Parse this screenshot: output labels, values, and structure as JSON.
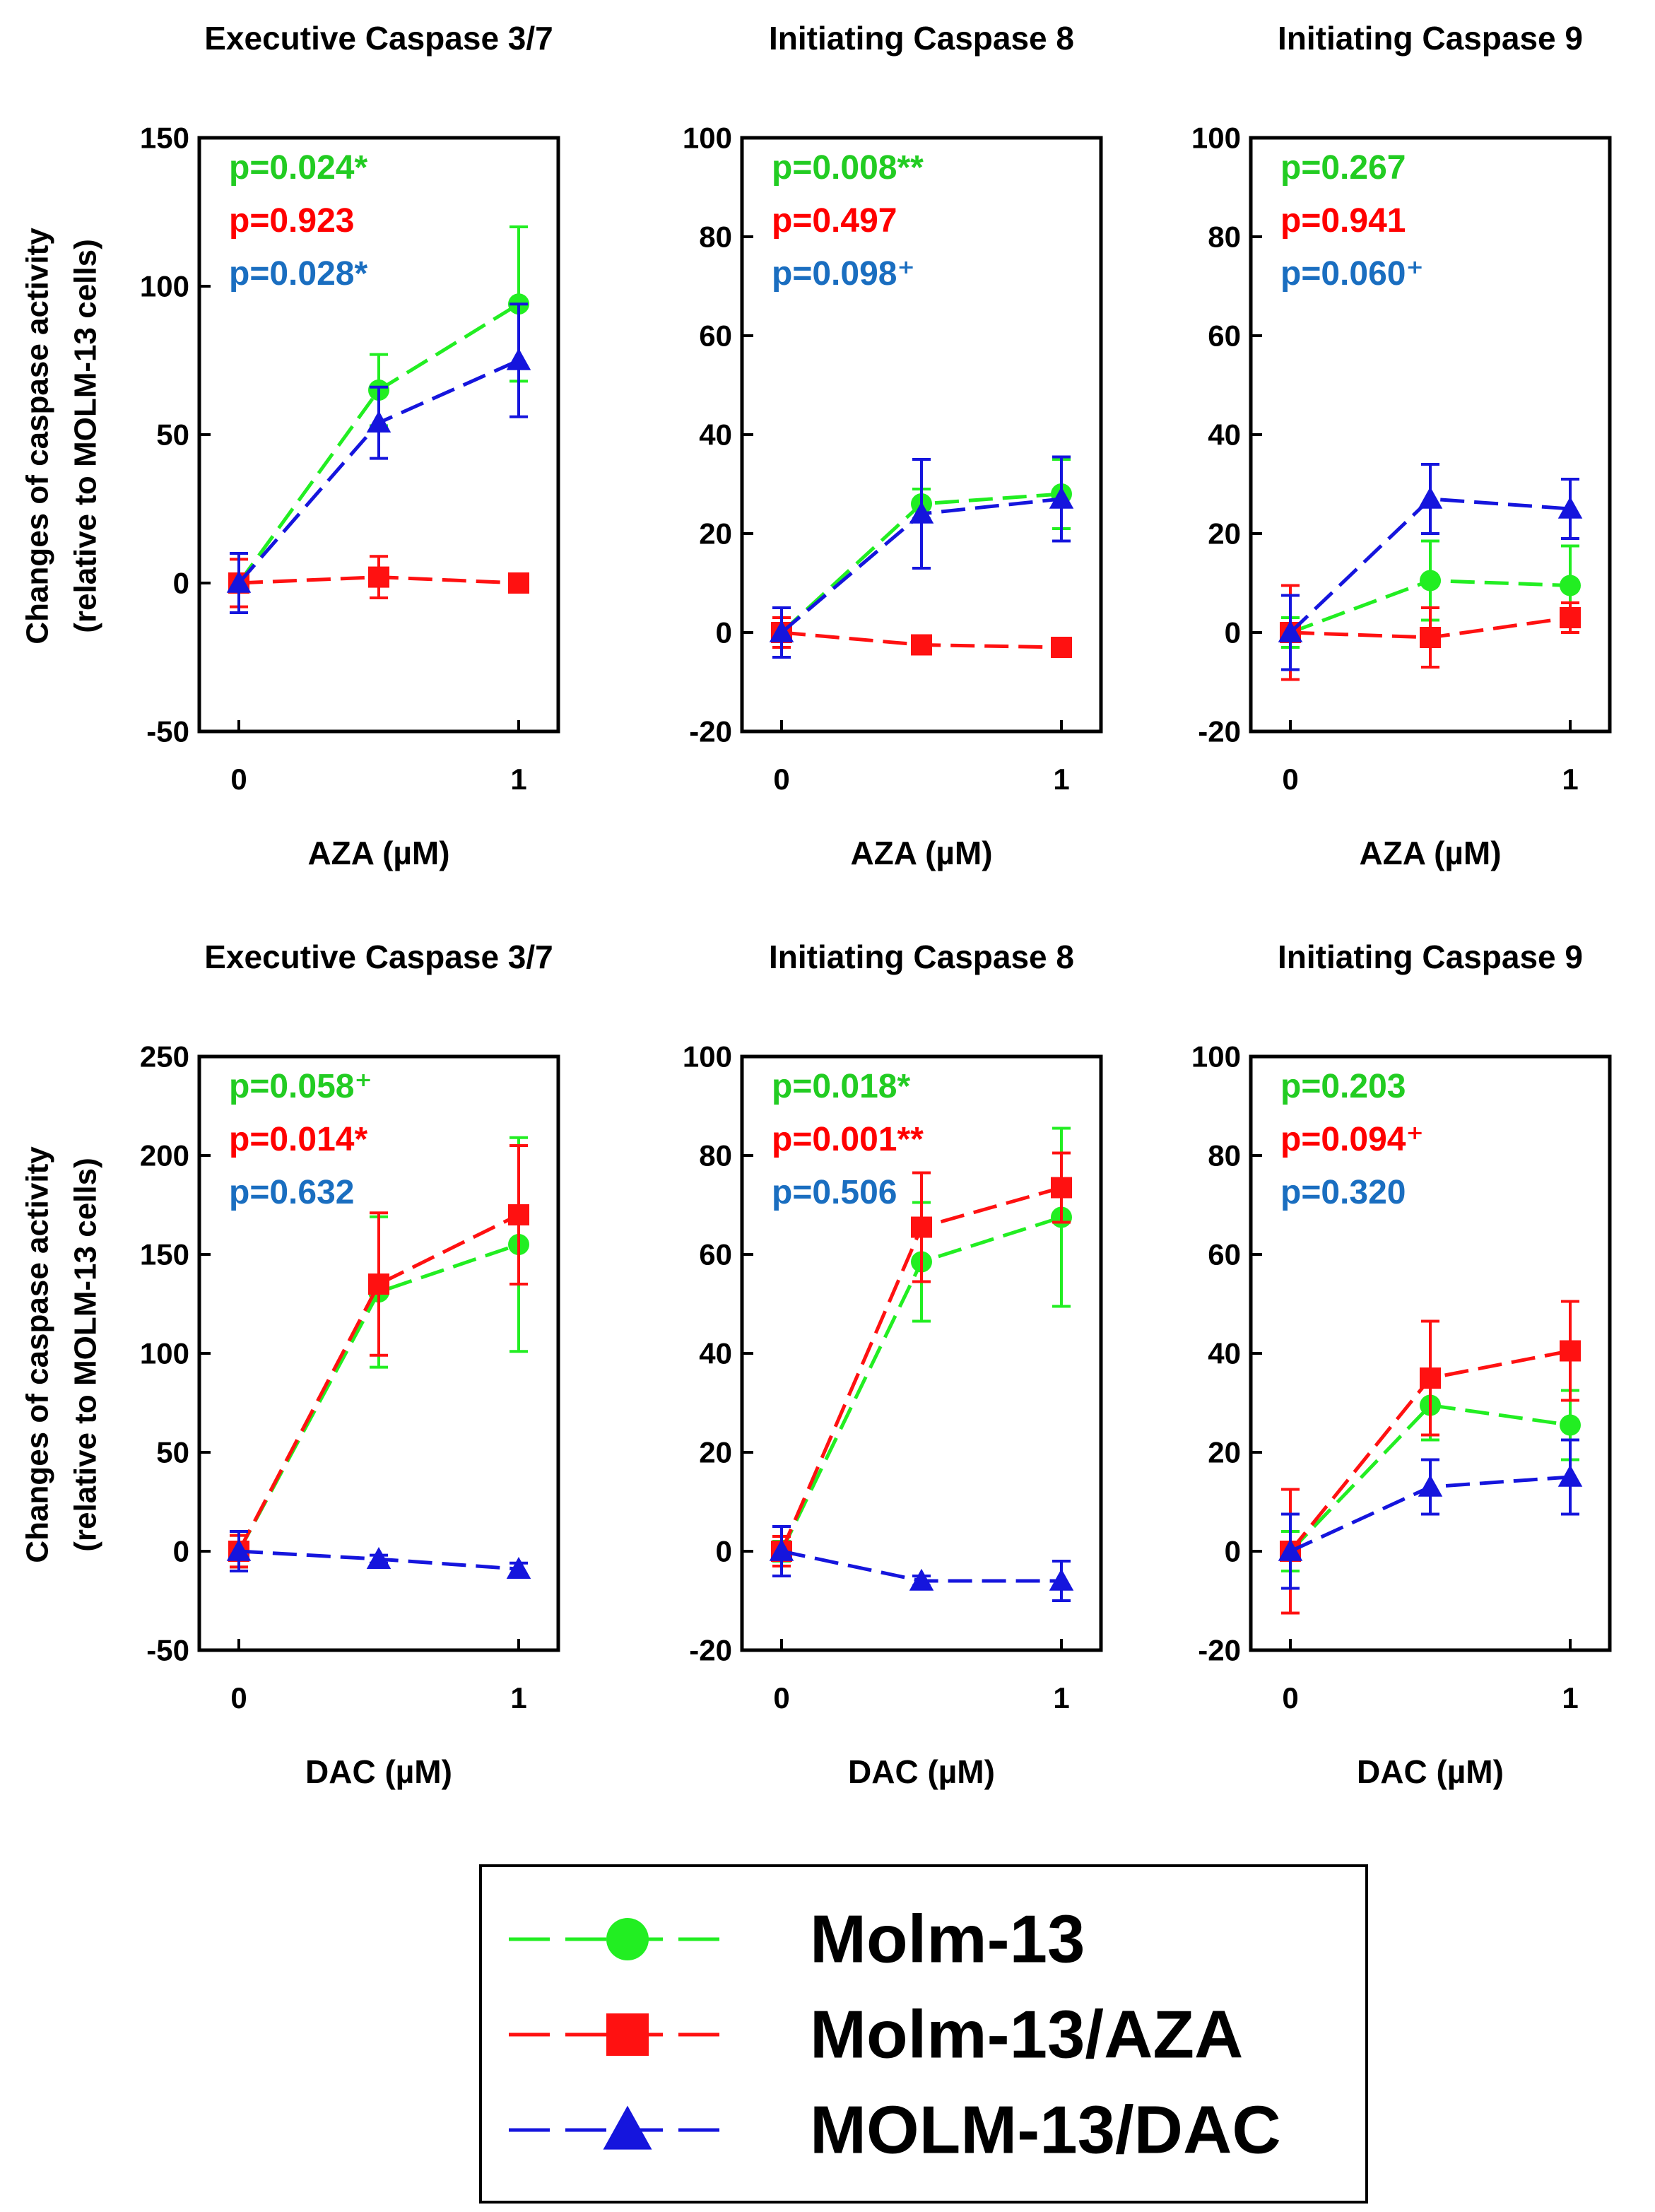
{
  "colors": {
    "molm13": "#22ee22",
    "molm13_aza": "#ff1111",
    "molm13_dac": "#1515dd",
    "p_green": "#22cc22",
    "p_red": "#ff0000",
    "p_blue": "#1a6ec0"
  },
  "ylabel_line1": "Changes of caspase activity",
  "ylabel_line2": "(relative to MOLM-13 cells)",
  "legend": {
    "items": [
      {
        "key": "molm13",
        "label": "Molm-13",
        "marker": "circle"
      },
      {
        "key": "molm13_aza",
        "label": "Molm-13/AZA",
        "marker": "square"
      },
      {
        "key": "molm13_dac",
        "label": "MOLM-13/DAC",
        "marker": "triangle"
      }
    ]
  },
  "chart_data": [
    {
      "type": "line",
      "title": "Executive Caspase 3/7",
      "xlabel": "AZA (µM)",
      "x": [
        0,
        0.5,
        1
      ],
      "xticks": [
        0,
        1
      ],
      "ylim": [
        -50,
        150
      ],
      "yticks": [
        -50,
        0,
        50,
        100,
        150
      ],
      "pvalues": [
        {
          "text": "p=0.024*",
          "color": "p_green"
        },
        {
          "text": "p=0.923",
          "color": "p_red"
        },
        {
          "text": "p=0.028*",
          "color": "p_blue"
        }
      ],
      "series": [
        {
          "key": "molm13",
          "name": "Molm-13",
          "values": [
            0,
            65,
            94
          ],
          "errors": [
            10,
            12,
            26
          ]
        },
        {
          "key": "molm13_aza",
          "name": "Molm-13/AZA",
          "values": [
            0,
            2,
            0
          ],
          "errors": [
            8,
            7,
            2
          ]
        },
        {
          "key": "molm13_dac",
          "name": "MOLM-13/DAC",
          "values": [
            0,
            54,
            75
          ],
          "errors": [
            10,
            12,
            19
          ]
        }
      ]
    },
    {
      "type": "line",
      "title": "Initiating Caspase 8",
      "xlabel": "AZA (µM)",
      "x": [
        0,
        0.5,
        1
      ],
      "xticks": [
        0,
        1
      ],
      "ylim": [
        -20,
        100
      ],
      "yticks": [
        -20,
        0,
        20,
        40,
        60,
        80,
        100
      ],
      "pvalues": [
        {
          "text": "p=0.008**",
          "color": "p_green"
        },
        {
          "text": "p=0.497",
          "color": "p_red"
        },
        {
          "text": "p=0.098⁺",
          "color": "p_blue"
        }
      ],
      "series": [
        {
          "key": "molm13",
          "name": "Molm-13",
          "values": [
            0,
            26,
            28
          ],
          "errors": [
            3,
            3,
            7
          ]
        },
        {
          "key": "molm13_aza",
          "name": "Molm-13/AZA",
          "values": [
            0,
            -2.5,
            -3
          ],
          "errors": [
            3,
            1,
            1
          ]
        },
        {
          "key": "molm13_dac",
          "name": "MOLM-13/DAC",
          "values": [
            0,
            24,
            27
          ],
          "errors": [
            5,
            11,
            8.5
          ]
        }
      ]
    },
    {
      "type": "line",
      "title": "Initiating Caspase 9",
      "xlabel": "AZA (µM)",
      "x": [
        0,
        0.5,
        1
      ],
      "xticks": [
        0,
        1
      ],
      "ylim": [
        -20,
        100
      ],
      "yticks": [
        -20,
        0,
        20,
        40,
        60,
        80,
        100
      ],
      "pvalues": [
        {
          "text": "p=0.267",
          "color": "p_green"
        },
        {
          "text": "p=0.941",
          "color": "p_red"
        },
        {
          "text": "p=0.060⁺",
          "color": "p_blue"
        }
      ],
      "series": [
        {
          "key": "molm13",
          "name": "Molm-13",
          "values": [
            0,
            10.5,
            9.5
          ],
          "errors": [
            3,
            8,
            8
          ]
        },
        {
          "key": "molm13_aza",
          "name": "Molm-13/AZA",
          "values": [
            0,
            -1,
            3
          ],
          "errors": [
            9.5,
            6,
            3
          ]
        },
        {
          "key": "molm13_dac",
          "name": "MOLM-13/DAC",
          "values": [
            0,
            27,
            25
          ],
          "errors": [
            7.5,
            7,
            6
          ]
        }
      ]
    },
    {
      "type": "line",
      "title": "Executive Caspase 3/7",
      "xlabel": "DAC (µM)",
      "x": [
        0,
        0.5,
        1
      ],
      "xticks": [
        0,
        1
      ],
      "ylim": [
        -50,
        250
      ],
      "yticks": [
        -50,
        0,
        50,
        100,
        150,
        200,
        250
      ],
      "pvalues": [
        {
          "text": "p=0.058⁺",
          "color": "p_green"
        },
        {
          "text": "p=0.014*",
          "color": "p_red"
        },
        {
          "text": "p=0.632",
          "color": "p_blue"
        }
      ],
      "series": [
        {
          "key": "molm13",
          "name": "Molm-13",
          "values": [
            0,
            131,
            155
          ],
          "errors": [
            8,
            38,
            54
          ]
        },
        {
          "key": "molm13_aza",
          "name": "Molm-13/AZA",
          "values": [
            0,
            135,
            170
          ],
          "errors": [
            8,
            36,
            35
          ]
        },
        {
          "key": "molm13_dac",
          "name": "MOLM-13/DAC",
          "values": [
            0,
            -4,
            -9
          ],
          "errors": [
            10,
            2,
            3
          ]
        }
      ]
    },
    {
      "type": "line",
      "title": "Initiating Caspase 8",
      "xlabel": "DAC (µM)",
      "x": [
        0,
        0.5,
        1
      ],
      "xticks": [
        0,
        1
      ],
      "ylim": [
        -20,
        100
      ],
      "yticks": [
        -20,
        0,
        20,
        40,
        60,
        80,
        100
      ],
      "pvalues": [
        {
          "text": "p=0.018*",
          "color": "p_green"
        },
        {
          "text": "p=0.001**",
          "color": "p_red"
        },
        {
          "text": "p=0.506",
          "color": "p_blue"
        }
      ],
      "series": [
        {
          "key": "molm13",
          "name": "Molm-13",
          "values": [
            0,
            58.5,
            67.5
          ],
          "errors": [
            2,
            12,
            18
          ]
        },
        {
          "key": "molm13_aza",
          "name": "Molm-13/AZA",
          "values": [
            0,
            65.5,
            73.5
          ],
          "errors": [
            3,
            11,
            7
          ]
        },
        {
          "key": "molm13_dac",
          "name": "MOLM-13/DAC",
          "values": [
            0,
            -6,
            -6
          ],
          "errors": [
            5,
            1,
            4
          ]
        }
      ]
    },
    {
      "type": "line",
      "title": "Initiating Caspase 9",
      "xlabel": "DAC (µM)",
      "x": [
        0,
        0.5,
        1
      ],
      "xticks": [
        0,
        1
      ],
      "ylim": [
        -20,
        100
      ],
      "yticks": [
        -20,
        0,
        20,
        40,
        60,
        80,
        100
      ],
      "pvalues": [
        {
          "text": "p=0.203",
          "color": "p_green"
        },
        {
          "text": "p=0.094⁺",
          "color": "p_red"
        },
        {
          "text": "p=0.320",
          "color": "p_blue"
        }
      ],
      "series": [
        {
          "key": "molm13",
          "name": "Molm-13",
          "values": [
            0,
            29.5,
            25.5
          ],
          "errors": [
            4,
            7,
            7
          ]
        },
        {
          "key": "molm13_aza",
          "name": "Molm-13/AZA",
          "values": [
            0,
            35,
            40.5
          ],
          "errors": [
            12.5,
            11.5,
            10
          ]
        },
        {
          "key": "molm13_dac",
          "name": "MOLM-13/DAC",
          "values": [
            0,
            13,
            15
          ],
          "errors": [
            7.5,
            5.5,
            7.5
          ]
        }
      ]
    }
  ]
}
